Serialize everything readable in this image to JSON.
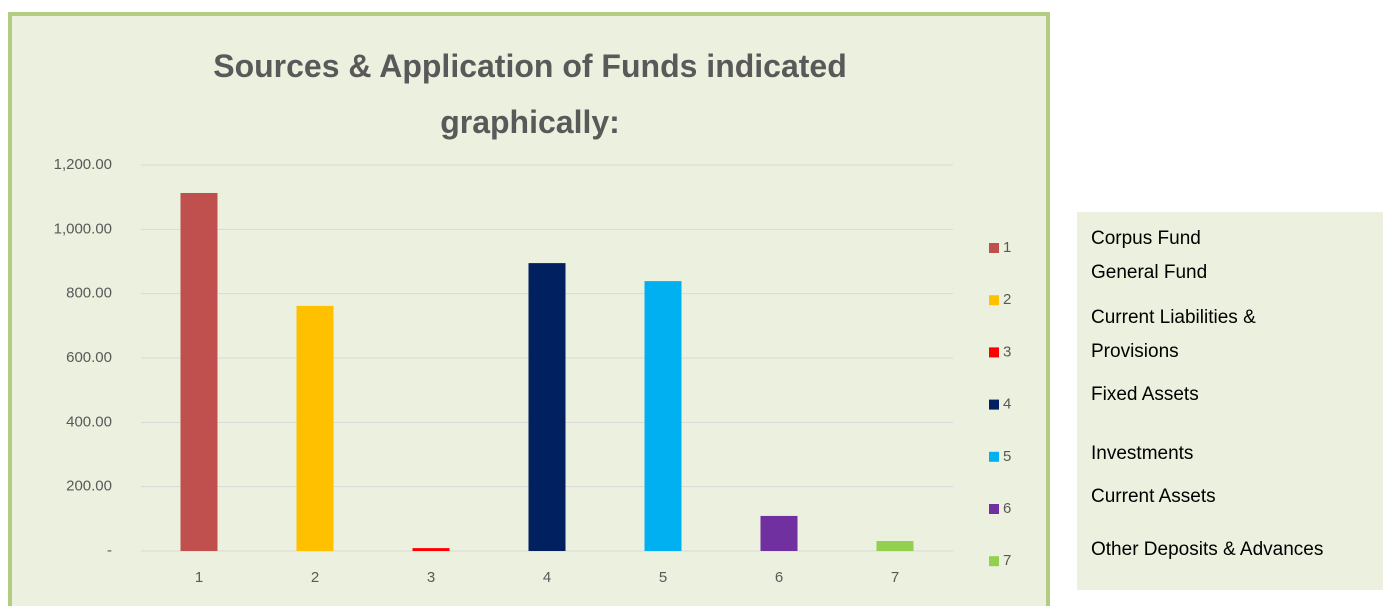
{
  "chart_data": {
    "type": "bar",
    "title": "Sources & Application of Funds indicated graphically:",
    "categories": [
      "1",
      "2",
      "3",
      "4",
      "5",
      "6",
      "7"
    ],
    "values": [
      1113,
      762,
      9,
      895,
      839,
      109,
      31
    ],
    "colors": [
      "#c0504d",
      "#ffc000",
      "#ff0000",
      "#002060",
      "#00b0f0",
      "#7030a0",
      "#92d050"
    ],
    "ylim": [
      0,
      1200
    ],
    "yticks": [
      {
        "value": 0,
        "label": "-"
      },
      {
        "value": 200,
        "label": "200.00"
      },
      {
        "value": 400,
        "label": "400.00"
      },
      {
        "value": 600,
        "label": "600.00"
      },
      {
        "value": 800,
        "label": "800.00"
      },
      {
        "value": 1000,
        "label": "1,000.00"
      },
      {
        "value": 1200,
        "label": "1,200.00"
      }
    ],
    "grid": true,
    "legend": "right"
  },
  "side_panel": {
    "items": [
      "Corpus Fund",
      "General Fund",
      "Current Liabilities & Provisions",
      "Fixed Assets",
      "Investments",
      "Current Assets",
      "Other Deposits & Advances"
    ]
  }
}
